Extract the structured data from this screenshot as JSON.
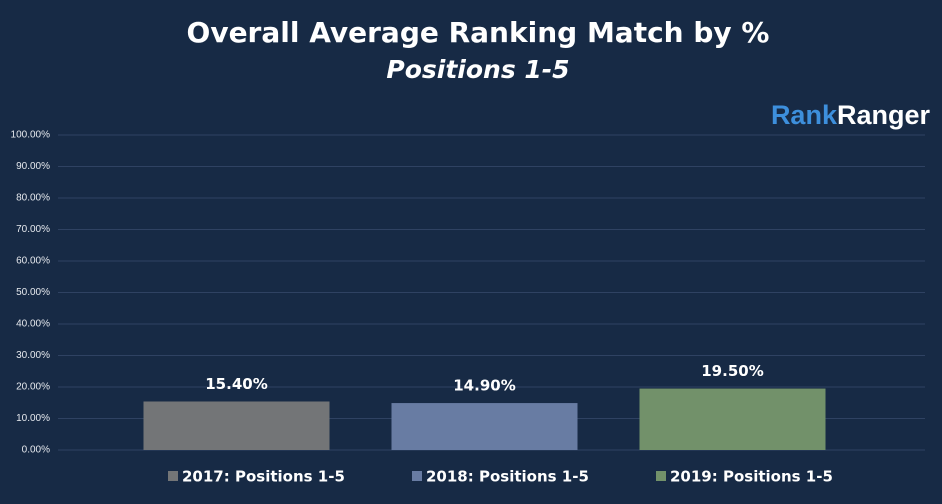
{
  "chart_data": {
    "type": "bar",
    "title": "Overall Average Ranking Match by %",
    "subtitle": "Positions 1-5",
    "logo": [
      "Rank",
      "Ranger"
    ],
    "categories": [
      null
    ],
    "series": [
      {
        "name": "2017: Positions 1-5",
        "color": "#737577",
        "values": [
          15.4
        ],
        "value_labels": [
          "15.40%"
        ]
      },
      {
        "name": "2018: Positions 1-5",
        "color": "#687ca3",
        "values": [
          14.9
        ],
        "value_labels": [
          "14.90%"
        ]
      },
      {
        "name": "2019: Positions 1-5",
        "color": "#72916a",
        "values": [
          19.5
        ],
        "value_labels": [
          "19.50%"
        ]
      }
    ],
    "ylim": [
      0,
      100
    ],
    "yticks": [
      {
        "value": 0,
        "label": "0.00%"
      },
      {
        "value": 10,
        "label": "10.00%"
      },
      {
        "value": 20,
        "label": "20.00%"
      },
      {
        "value": 30,
        "label": "30.00%"
      },
      {
        "value": 40,
        "label": "40.00%"
      },
      {
        "value": 50,
        "label": "50.00%"
      },
      {
        "value": 60,
        "label": "60.00%"
      },
      {
        "value": 70,
        "label": "70.00%"
      },
      {
        "value": 80,
        "label": "80.00%"
      },
      {
        "value": 90,
        "label": "90.00%"
      },
      {
        "value": 100,
        "label": "100.00%"
      }
    ],
    "grid": true,
    "legend": "bottom"
  }
}
